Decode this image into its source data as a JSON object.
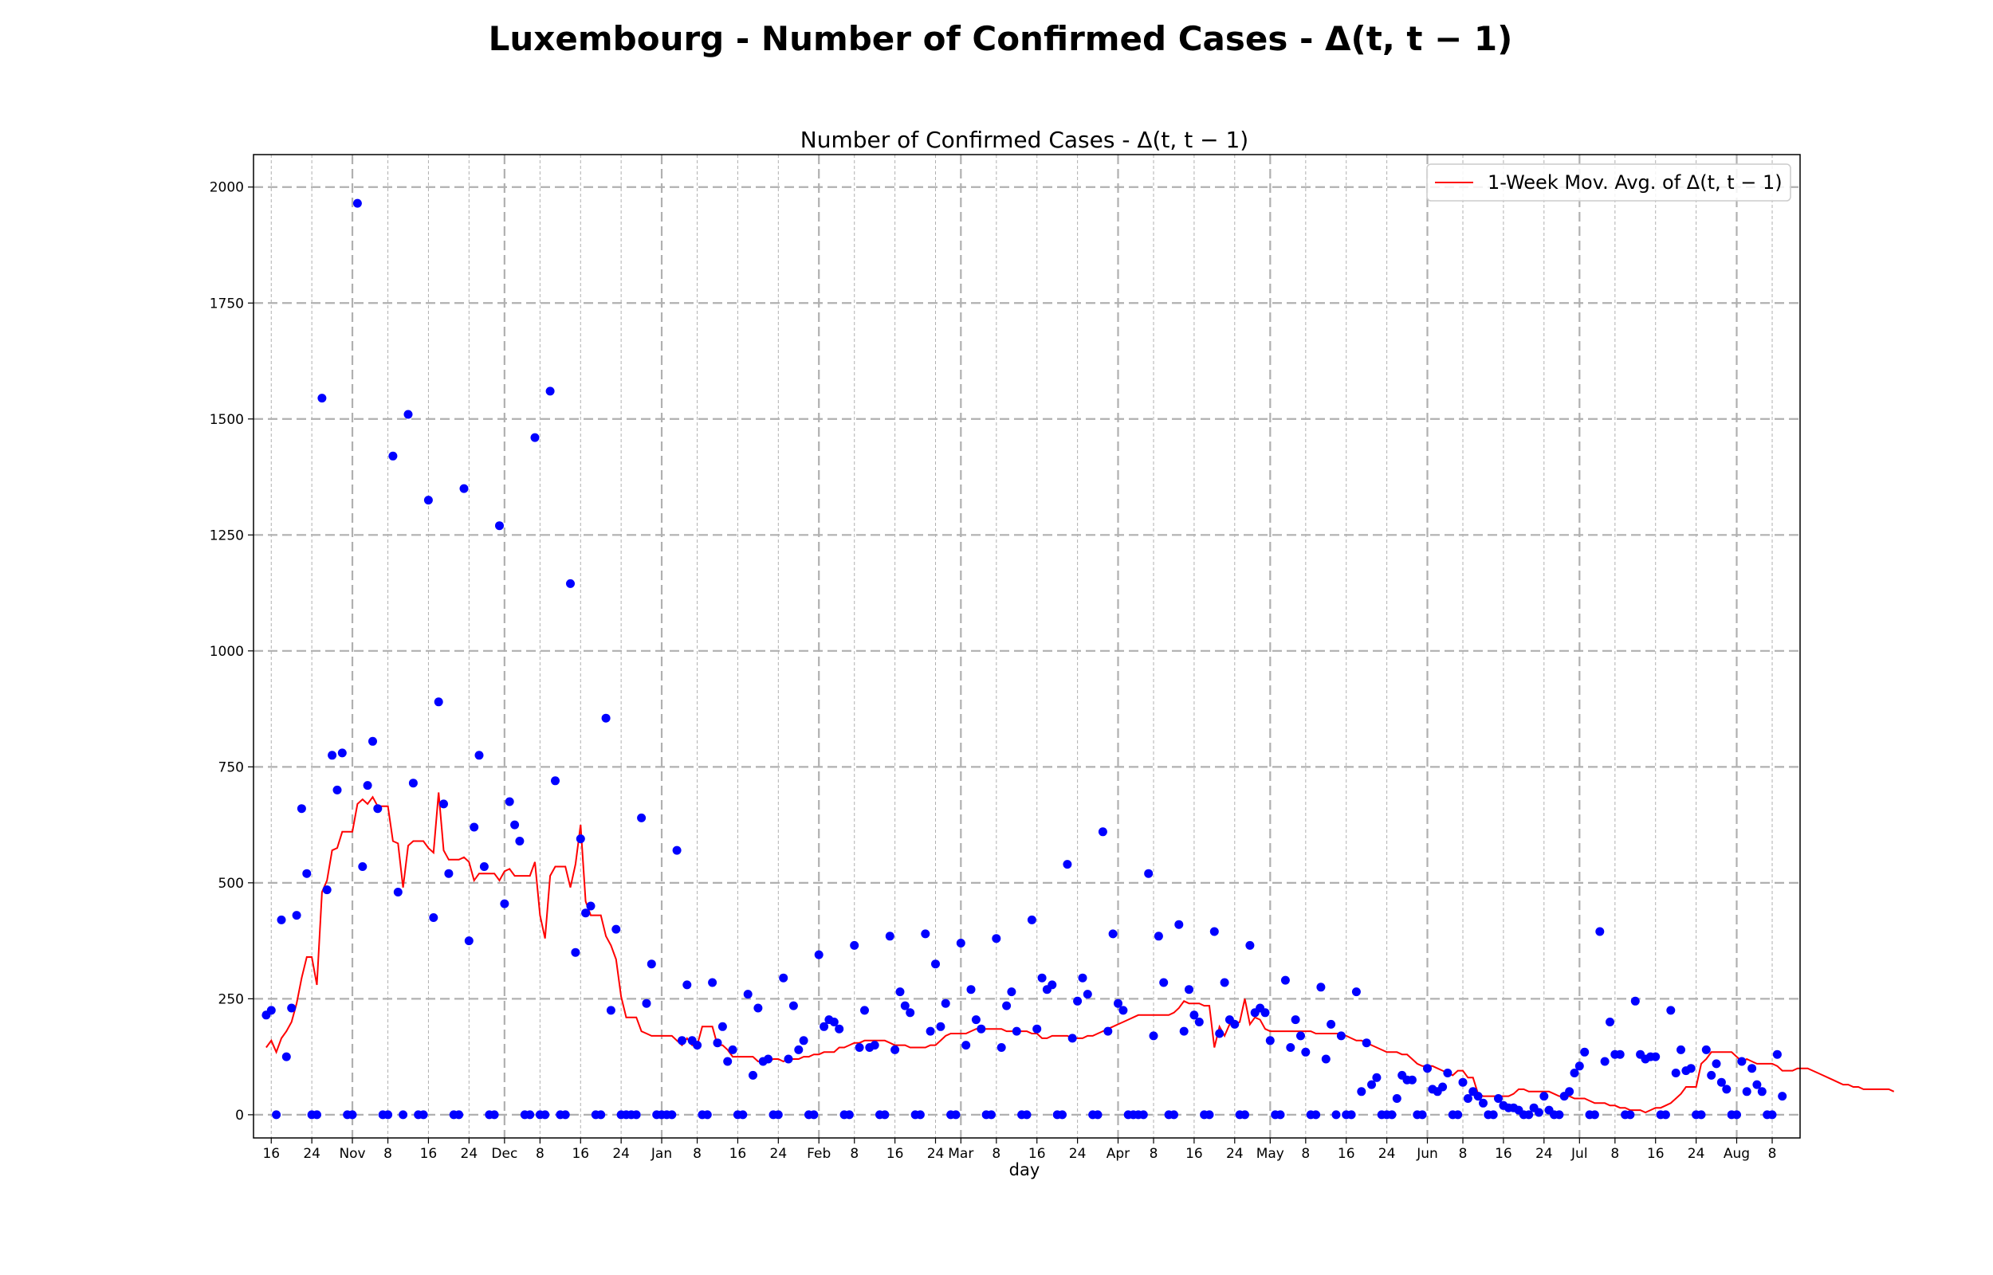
{
  "chart_data": {
    "type": "scatter+line",
    "suptitle": "Luxembourg - Number of Confirmed Cases - Δ(t, t − 1)",
    "title": "Number of Confirmed Cases - Δ(t, t − 1)",
    "xlabel": "day",
    "ylabel": "",
    "ylim": [
      -50,
      2070
    ],
    "yticks": [
      0,
      250,
      500,
      750,
      1000,
      1250,
      1500,
      1750,
      2000
    ],
    "x_start_day_index": 0,
    "x_start_label": "Oct 15",
    "xlim_days": [
      -2.5,
      302.5
    ],
    "xticks": [
      {
        "day": 1,
        "label": "16",
        "major": false
      },
      {
        "day": 9,
        "label": "24",
        "major": false
      },
      {
        "day": 17,
        "label": "Nov",
        "major": true
      },
      {
        "day": 24,
        "label": "8",
        "major": false
      },
      {
        "day": 32,
        "label": "16",
        "major": false
      },
      {
        "day": 40,
        "label": "24",
        "major": false
      },
      {
        "day": 47,
        "label": "Dec",
        "major": true
      },
      {
        "day": 54,
        "label": "8",
        "major": false
      },
      {
        "day": 62,
        "label": "16",
        "major": false
      },
      {
        "day": 70,
        "label": "24",
        "major": false
      },
      {
        "day": 78,
        "label": "Jan",
        "major": true
      },
      {
        "day": 85,
        "label": "8",
        "major": false
      },
      {
        "day": 93,
        "label": "16",
        "major": false
      },
      {
        "day": 101,
        "label": "24",
        "major": false
      },
      {
        "day": 109,
        "label": "Feb",
        "major": true
      },
      {
        "day": 116,
        "label": "8",
        "major": false
      },
      {
        "day": 124,
        "label": "16",
        "major": false
      },
      {
        "day": 132,
        "label": "24",
        "major": false
      },
      {
        "day": 137,
        "label": "Mar",
        "major": true
      },
      {
        "day": 144,
        "label": "8",
        "major": false
      },
      {
        "day": 152,
        "label": "16",
        "major": false
      },
      {
        "day": 160,
        "label": "24",
        "major": false
      },
      {
        "day": 168,
        "label": "Apr",
        "major": true
      },
      {
        "day": 175,
        "label": "8",
        "major": false
      },
      {
        "day": 183,
        "label": "16",
        "major": false
      },
      {
        "day": 191,
        "label": "24",
        "major": false
      },
      {
        "day": 198,
        "label": "May",
        "major": true
      },
      {
        "day": 205,
        "label": "8",
        "major": false
      },
      {
        "day": 213,
        "label": "16",
        "major": false
      },
      {
        "day": 221,
        "label": "24",
        "major": false
      },
      {
        "day": 229,
        "label": "Jun",
        "major": true
      },
      {
        "day": 236,
        "label": "8",
        "major": false
      },
      {
        "day": 244,
        "label": "16",
        "major": false
      },
      {
        "day": 252,
        "label": "24",
        "major": false
      },
      {
        "day": 259,
        "label": "Jul",
        "major": true
      },
      {
        "day": 266,
        "label": "8",
        "major": false
      },
      {
        "day": 274,
        "label": "16",
        "major": false
      },
      {
        "day": 282,
        "label": "24",
        "major": false
      },
      {
        "day": 290,
        "label": "Aug",
        "major": true
      },
      {
        "day": 297,
        "label": "8",
        "major": false
      }
    ],
    "legend": {
      "label": "1-Week Mov. Avg. of Δ(t, t − 1)",
      "placement": "top-right"
    },
    "colors": {
      "points": "#0000ff",
      "line": "#ff0000",
      "grid": "#b0b0b0"
    },
    "series": [
      {
        "name": "Δ(t, t − 1)",
        "kind": "scatter",
        "values": [
          215,
          225,
          0,
          420,
          125,
          230,
          430,
          660,
          520,
          0,
          0,
          1545,
          485,
          775,
          700,
          780,
          0,
          0,
          1965,
          535,
          710,
          805,
          660,
          0,
          0,
          1420,
          480,
          0,
          1510,
          715,
          0,
          0,
          1325,
          425,
          890,
          670,
          520,
          0,
          0,
          1350,
          375,
          620,
          775,
          535,
          0,
          0,
          1270,
          455,
          675,
          625,
          590,
          0,
          0,
          1460,
          0,
          0,
          1560,
          720,
          0,
          0,
          1145,
          350,
          595,
          435,
          450,
          0,
          0,
          855,
          225,
          400,
          0,
          0,
          0,
          0,
          640,
          240,
          325,
          0,
          0,
          0,
          0,
          570,
          160,
          280,
          160,
          150,
          0,
          0,
          285,
          155,
          190,
          115,
          140,
          0,
          0,
          260,
          85,
          230,
          115,
          120,
          0,
          0,
          295,
          120,
          235,
          140,
          160,
          0,
          0,
          345,
          190,
          205,
          200,
          185,
          0,
          0,
          365,
          145,
          225,
          145,
          150,
          0,
          0,
          385,
          140,
          265,
          235,
          220,
          0,
          0,
          390,
          180,
          325,
          190,
          240,
          0,
          0,
          370,
          150,
          270,
          205,
          185,
          0,
          0,
          380,
          145,
          235,
          265,
          180,
          0,
          0,
          420,
          185,
          295,
          270,
          280,
          0,
          0,
          540,
          165,
          245,
          295,
          260,
          0,
          0,
          610,
          180,
          390,
          240,
          225,
          0,
          0,
          0,
          0,
          520,
          170,
          385,
          285,
          0,
          0,
          410,
          180,
          270,
          215,
          200,
          0,
          0,
          395,
          175,
          285,
          205,
          195,
          0,
          0,
          365,
          220,
          230,
          220,
          160,
          0,
          0,
          290,
          145,
          205,
          170,
          135,
          0,
          0,
          275,
          120,
          195,
          0,
          170,
          0,
          0,
          265,
          50,
          155,
          65,
          80,
          0,
          0,
          0,
          35,
          85,
          75,
          75,
          0,
          0,
          100,
          55,
          50,
          60,
          90,
          0,
          0,
          70,
          35,
          50,
          40,
          25,
          0,
          0,
          35,
          20,
          15,
          15,
          10,
          0,
          0,
          15,
          5,
          40,
          10,
          0,
          0,
          40,
          50,
          90,
          105,
          135,
          0,
          0,
          395,
          115,
          200,
          130,
          130,
          0,
          0,
          245,
          130,
          120,
          125,
          125,
          0,
          0,
          225,
          90,
          140,
          95,
          100,
          0,
          0,
          140,
          85,
          110,
          70,
          55,
          0,
          0,
          115,
          50,
          100,
          65,
          50,
          0,
          0,
          130,
          40
        ]
      },
      {
        "name": "1-Week Mov. Avg. of Δ(t, t − 1)",
        "kind": "line",
        "values": [
          145,
          160,
          135,
          165,
          180,
          200,
          240,
          295,
          340,
          340,
          280,
          480,
          505,
          570,
          575,
          610,
          610,
          610,
          670,
          680,
          670,
          685,
          665,
          665,
          665,
          590,
          585,
          490,
          580,
          590,
          590,
          590,
          575,
          565,
          695,
          570,
          550,
          550,
          550,
          555,
          545,
          505,
          520,
          520,
          520,
          520,
          505,
          525,
          530,
          515,
          515,
          515,
          515,
          545,
          430,
          380,
          515,
          535,
          535,
          535,
          490,
          540,
          625,
          460,
          430,
          430,
          430,
          385,
          365,
          335,
          255,
          210,
          210,
          210,
          180,
          175,
          170,
          170,
          170,
          170,
          170,
          160,
          150,
          165,
          150,
          150,
          190,
          190,
          190,
          150,
          150,
          140,
          125,
          125,
          125,
          125,
          125,
          115,
          115,
          115,
          120,
          120,
          115,
          120,
          120,
          120,
          125,
          125,
          130,
          130,
          135,
          135,
          135,
          145,
          145,
          150,
          155,
          155,
          160,
          160,
          160,
          160,
          160,
          155,
          150,
          150,
          150,
          145,
          145,
          145,
          145,
          150,
          150,
          160,
          170,
          175,
          175,
          175,
          175,
          180,
          185,
          185,
          185,
          185,
          185,
          185,
          180,
          180,
          180,
          180,
          180,
          175,
          175,
          165,
          165,
          170,
          170,
          170,
          170,
          165,
          165,
          165,
          170,
          170,
          175,
          180,
          185,
          190,
          195,
          200,
          205,
          210,
          215,
          215,
          215,
          215,
          215,
          215,
          215,
          220,
          230,
          245,
          240,
          240,
          240,
          235,
          235,
          145,
          190,
          170,
          195,
          195,
          200,
          250,
          195,
          210,
          205,
          185,
          180,
          180,
          180,
          180,
          180,
          180,
          180,
          180,
          180,
          175,
          175,
          175,
          175,
          175,
          175,
          170,
          165,
          160,
          160,
          155,
          150,
          145,
          140,
          135,
          135,
          135,
          130,
          130,
          120,
          110,
          105,
          105,
          105,
          100,
          95,
          90,
          85,
          95,
          95,
          80,
          80,
          45,
          40,
          40,
          40,
          40,
          40,
          40,
          45,
          55,
          55,
          50,
          50,
          50,
          50,
          50,
          45,
          40,
          40,
          40,
          35,
          35,
          35,
          30,
          25,
          25,
          25,
          20,
          20,
          15,
          15,
          10,
          10,
          10,
          5,
          10,
          15,
          15,
          20,
          25,
          35,
          45,
          60,
          60,
          60,
          110,
          120,
          135,
          135,
          135,
          135,
          135,
          125,
          115,
          120,
          115,
          110,
          110,
          110,
          110,
          105,
          95,
          95,
          95,
          100,
          100,
          100,
          95,
          90,
          85,
          80,
          75,
          70,
          65,
          65,
          60,
          60,
          55,
          55,
          55,
          55,
          55,
          55,
          50
        ]
      }
    ]
  }
}
